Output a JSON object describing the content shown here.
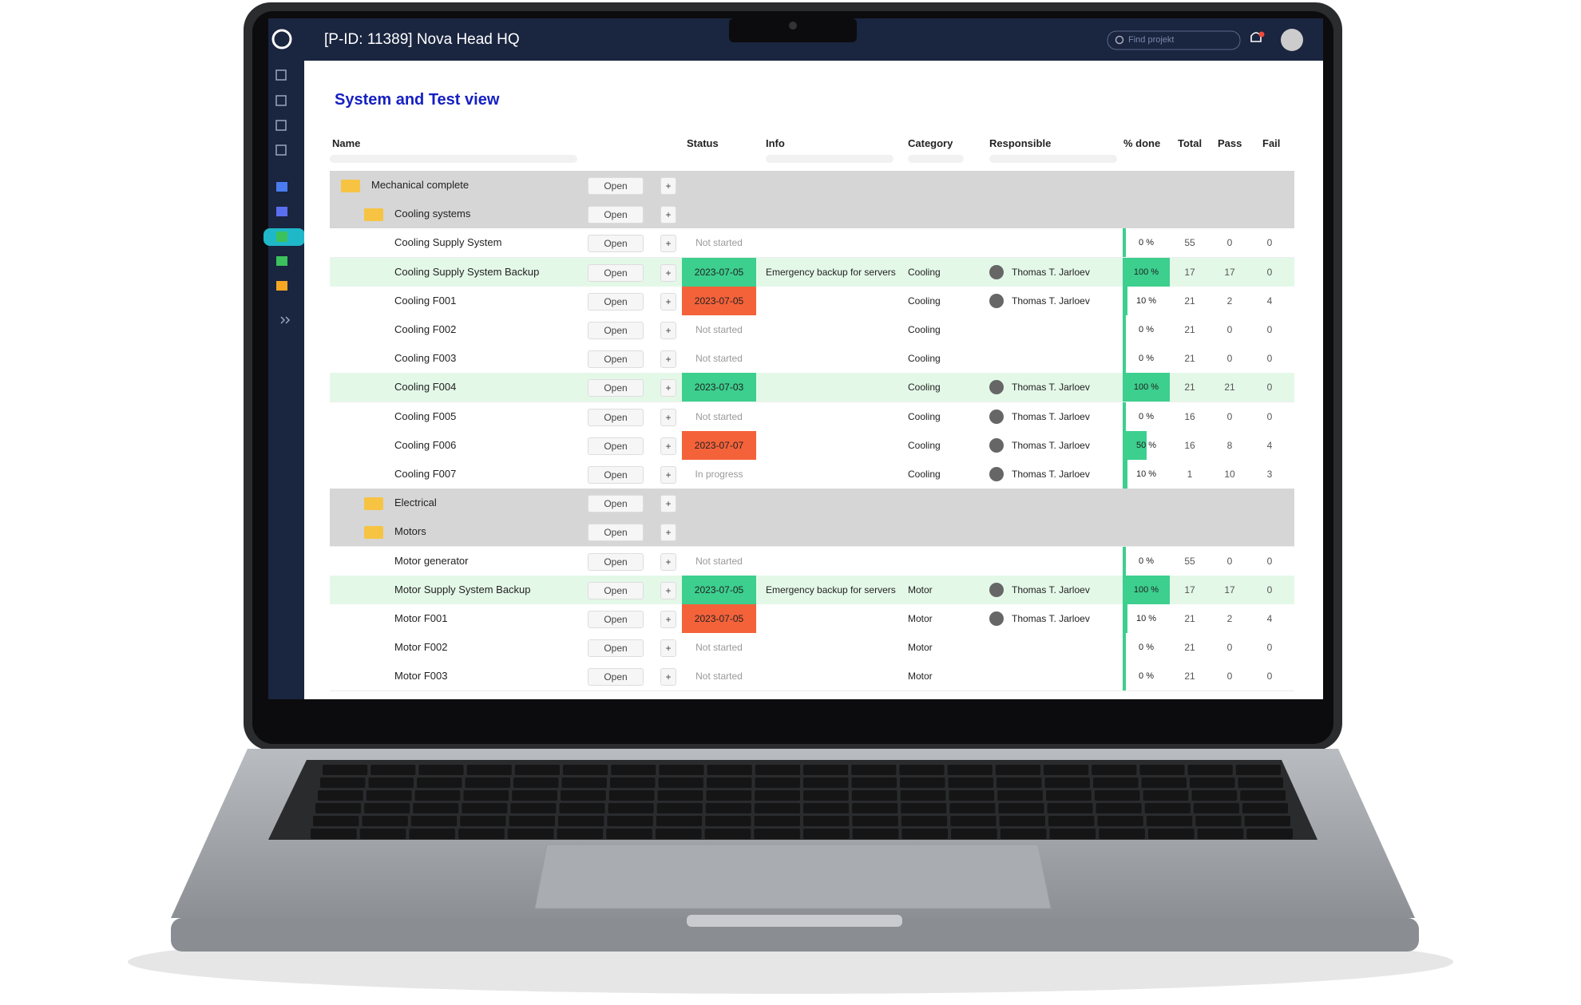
{
  "header": {
    "title": "[P-ID: 11389] Nova Head HQ",
    "search_placeholder": "Find projekt"
  },
  "page_title": "System and Test view",
  "open_label": "Open",
  "add_label": "+",
  "columns": [
    "Name",
    "Status",
    "Info",
    "Category",
    "Responsible",
    "% done",
    "Total",
    "Pass",
    "Fail"
  ],
  "done_color": "#3ccf8e",
  "rows": [
    {
      "name": "Mechanical complete",
      "folder": true,
      "level": 0
    },
    {
      "name": "Cooling systems",
      "folder": true,
      "level": 1
    },
    {
      "name": "Cooling Supply System",
      "level": 1,
      "status": "Not started",
      "done": 0,
      "done_label": "0 %",
      "total": 55,
      "pass": 0,
      "fail": 0
    },
    {
      "name": "Cooling Supply System Backup",
      "level": 1,
      "row_color": "#e4f8e8",
      "status": "2023-07-05",
      "status_color": "#3ccf8e",
      "info": "Emergency backup for servers",
      "category": "Cooling",
      "responsible": "Thomas T. Jarloev",
      "done": 100,
      "done_label": "100 %",
      "total": 17,
      "pass": 17,
      "fail": 0
    },
    {
      "name": "Cooling F001",
      "level": 1,
      "status": "2023-07-05",
      "status_color": "#f4623a",
      "category": "Cooling",
      "responsible": "Thomas T. Jarloev",
      "done": 10,
      "done_label": "10 %",
      "total": 21,
      "pass": 2,
      "fail": 4
    },
    {
      "name": "Cooling F002",
      "level": 1,
      "status": "Not started",
      "category": "Cooling",
      "done": 0,
      "done_label": "0 %",
      "total": 21,
      "pass": 0,
      "fail": 0
    },
    {
      "name": "Cooling F003",
      "level": 1,
      "status": "Not started",
      "category": "Cooling",
      "done": 0,
      "done_label": "0 %",
      "total": 21,
      "pass": 0,
      "fail": 0
    },
    {
      "name": "Cooling F004",
      "level": 1,
      "row_color": "#e4f8e8",
      "status": "2023-07-03",
      "status_color": "#3ccf8e",
      "category": "Cooling",
      "responsible": "Thomas T. Jarloev",
      "done": 100,
      "done_label": "100 %",
      "total": 21,
      "pass": 21,
      "fail": 0
    },
    {
      "name": "Cooling F005",
      "level": 1,
      "status": "Not started",
      "category": "Cooling",
      "responsible": "Thomas T. Jarloev",
      "done": 0,
      "done_label": "0 %",
      "total": 16,
      "pass": 0,
      "fail": 0
    },
    {
      "name": "Cooling F006",
      "level": 1,
      "status": "2023-07-07",
      "status_color": "#f4623a",
      "category": "Cooling",
      "responsible": "Thomas T. Jarloev",
      "done": 50,
      "done_label": "50 %",
      "total": 16,
      "pass": 8,
      "fail": 4
    },
    {
      "name": "Cooling F007",
      "level": 1,
      "status": "In progress",
      "category": "Cooling",
      "responsible": "Thomas T. Jarloev",
      "done": 10,
      "done_label": "10 %",
      "total": 1,
      "pass": 10,
      "fail": 3
    },
    {
      "name": "Electrical",
      "folder": true,
      "level": 1
    },
    {
      "name": "Motors",
      "folder": true,
      "level": 1
    },
    {
      "name": "Motor generator",
      "level": 1,
      "status": "Not started",
      "done": 0,
      "done_label": "0 %",
      "total": 55,
      "pass": 0,
      "fail": 0
    },
    {
      "name": "Motor Supply System Backup",
      "level": 1,
      "row_color": "#e4f8e8",
      "status": "2023-07-05",
      "status_color": "#3ccf8e",
      "info": "Emergency backup for servers",
      "category": "Motor",
      "responsible": "Thomas T. Jarloev",
      "done": 100,
      "done_label": "100 %",
      "total": 17,
      "pass": 17,
      "fail": 0
    },
    {
      "name": "Motor F001",
      "level": 1,
      "status": "2023-07-05",
      "status_color": "#f4623a",
      "category": "Motor",
      "responsible": "Thomas T. Jarloev",
      "done": 10,
      "done_label": "10 %",
      "total": 21,
      "pass": 2,
      "fail": 4
    },
    {
      "name": "Motor F002",
      "level": 1,
      "status": "Not started",
      "category": "Motor",
      "done": 0,
      "done_label": "0 %",
      "total": 21,
      "pass": 0,
      "fail": 0
    },
    {
      "name": "Motor F003",
      "level": 1,
      "status": "Not started",
      "category": "Motor",
      "done": 0,
      "done_label": "0 %",
      "total": 21,
      "pass": 0,
      "fail": 0
    }
  ]
}
